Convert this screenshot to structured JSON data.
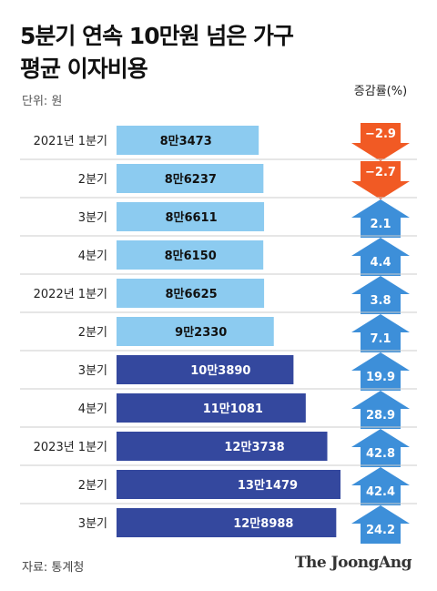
{
  "title": {
    "line1": "5분기 연속 10만원 넘은 가구",
    "line2": "평균 이자비용"
  },
  "unit_label": "단위: 원",
  "change_header": "증감률(%)",
  "source_label": "자료: 통계청",
  "logo": "The JoongAng",
  "colors": {
    "bar_light": "#8ccbf0",
    "bar_dark": "#34489e",
    "arrow_up": "#3d8fd9",
    "arrow_down": "#f15a24",
    "divider": "#cccccc"
  },
  "chart_data": {
    "type": "bar",
    "orientation": "horizontal",
    "categories": [
      "2021년 1분기",
      "2분기",
      "3분기",
      "4분기",
      "2022년 1분기",
      "2분기",
      "3분기",
      "4분기",
      "2023년 1분기",
      "2분기",
      "3분기"
    ],
    "series": [
      {
        "values": [
          83473,
          86237,
          86611,
          86150,
          86625,
          92330,
          103890,
          111081,
          123738,
          131479,
          128988
        ],
        "value_labels": [
          "8만3473",
          "8만6237",
          "8만6611",
          "8만6150",
          "8만6625",
          "9만2330",
          "10만3890",
          "11만1081",
          "12만3738",
          "13만1479",
          "12만8988"
        ]
      }
    ],
    "change_pct": [
      -2.9,
      -2.7,
      2.1,
      4.4,
      3.8,
      7.1,
      19.9,
      28.9,
      42.8,
      42.4,
      24.2
    ],
    "change_labels": [
      "−2.9",
      "−2.7",
      "2.1",
      "4.4",
      "3.8",
      "7.1",
      "19.9",
      "28.9",
      "42.8",
      "42.4",
      "24.2"
    ],
    "dark_from_index": 6,
    "xlim": [
      0,
      140000
    ]
  }
}
